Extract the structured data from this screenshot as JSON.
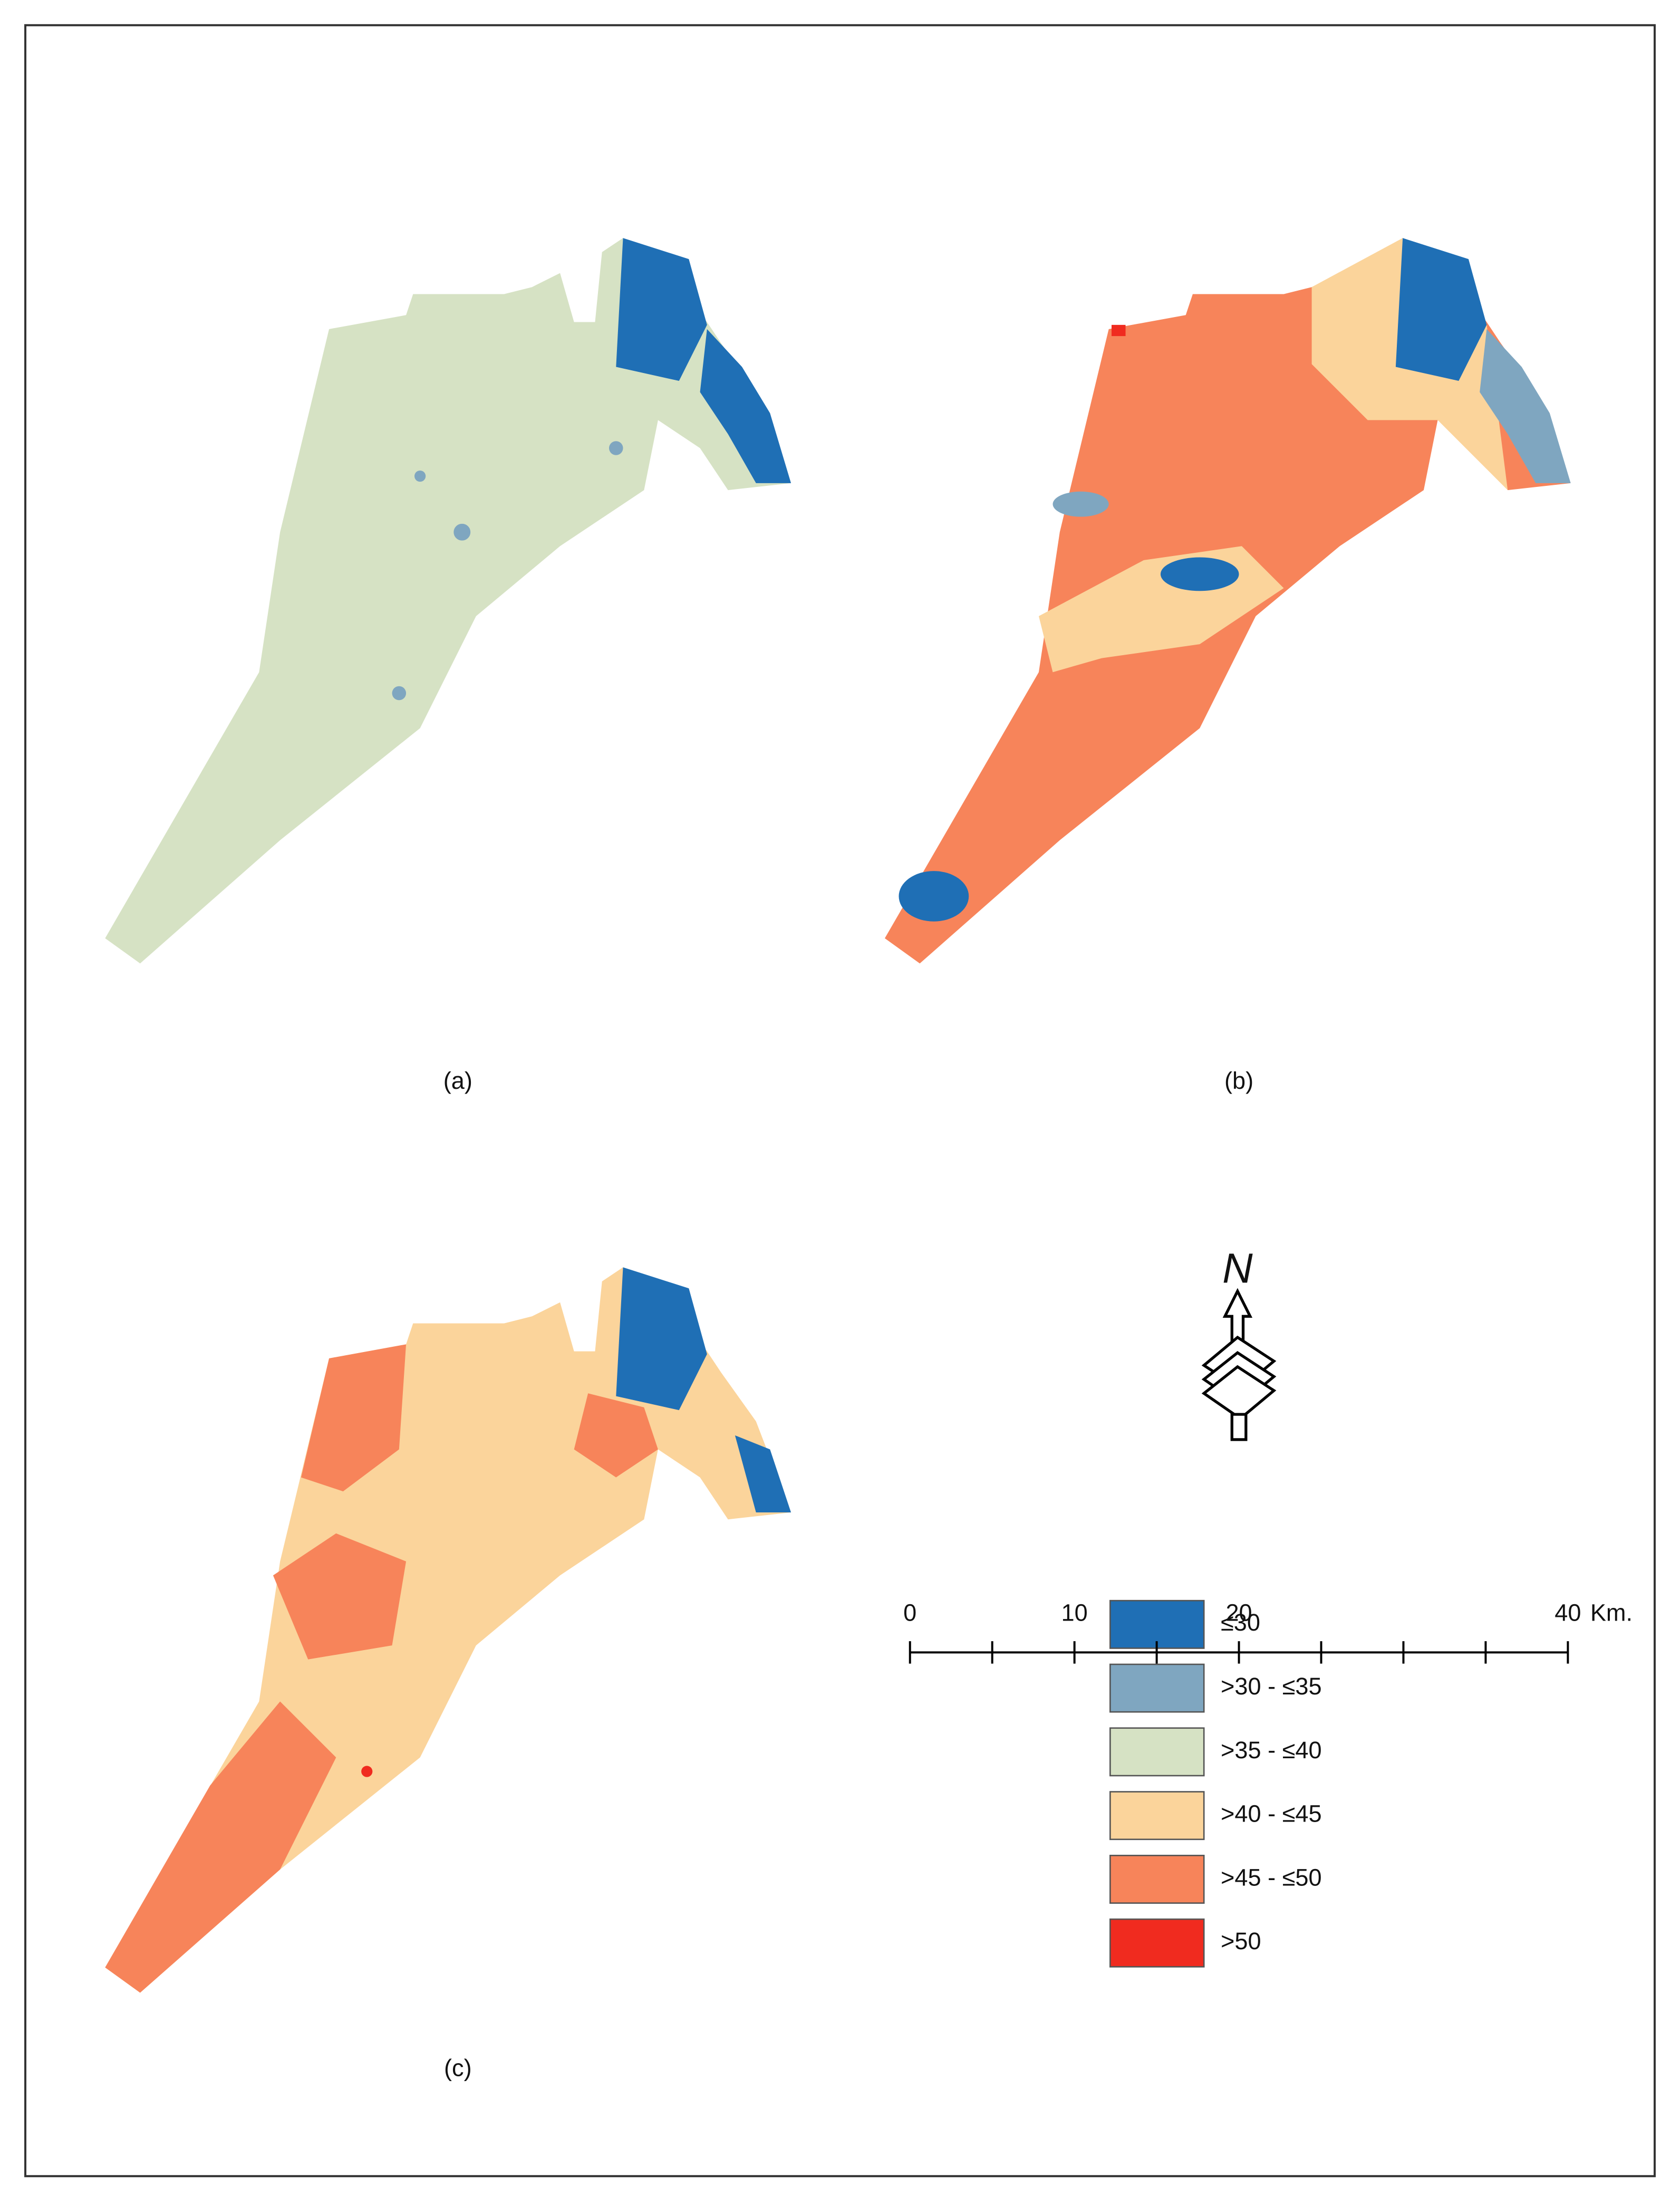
{
  "panels": [
    {
      "label": "(a)"
    },
    {
      "label": "(b)"
    },
    {
      "label": "(c)"
    }
  ],
  "legend": {
    "items": [
      {
        "label": "≤30",
        "color": "#1f6fb5"
      },
      {
        "label": ">30 - ≤35",
        "color": "#7fa6c0"
      },
      {
        "label": ">35 - ≤40",
        "color": "#d6e2c4"
      },
      {
        "label": ">40 - ≤45",
        "color": "#fbd49b"
      },
      {
        "label": ">45 - ≤50",
        "color": "#f7845a"
      },
      {
        "label": ">50",
        "color": "#f02b1f"
      }
    ]
  },
  "north_arrow": {
    "label": "N"
  },
  "scale_bar": {
    "xlim": [
      0,
      40
    ],
    "xticks": [
      0,
      10,
      20,
      40
    ],
    "minor_ticks": [
      5,
      15,
      25,
      30,
      35
    ],
    "unit": "Km."
  }
}
